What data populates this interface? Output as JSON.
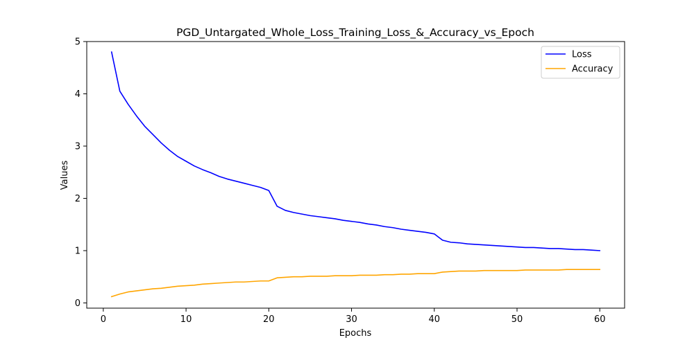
{
  "chart_data": {
    "type": "line",
    "title": "PGD_Untargated_Whole_Loss_Training_Loss_&_Accuracy_vs_Epoch",
    "xlabel": "Epochs",
    "ylabel": "Values",
    "xlim": [
      -2,
      63
    ],
    "ylim": [
      -0.1,
      5.0
    ],
    "xticks": [
      0,
      10,
      20,
      30,
      40,
      50,
      60
    ],
    "yticks": [
      0,
      1,
      2,
      3,
      4,
      5
    ],
    "grid": false,
    "legend_position": "upper right",
    "x": [
      1,
      2,
      3,
      4,
      5,
      6,
      7,
      8,
      9,
      10,
      11,
      12,
      13,
      14,
      15,
      16,
      17,
      18,
      19,
      20,
      21,
      22,
      23,
      24,
      25,
      26,
      27,
      28,
      29,
      30,
      31,
      32,
      33,
      34,
      35,
      36,
      37,
      38,
      39,
      40,
      41,
      42,
      43,
      44,
      45,
      46,
      47,
      48,
      49,
      50,
      51,
      52,
      53,
      54,
      55,
      56,
      57,
      58,
      59,
      60
    ],
    "series": [
      {
        "name": "Loss",
        "color": "#0000ff",
        "values": [
          4.8,
          4.05,
          3.8,
          3.58,
          3.38,
          3.22,
          3.06,
          2.92,
          2.8,
          2.71,
          2.62,
          2.55,
          2.49,
          2.42,
          2.37,
          2.33,
          2.29,
          2.25,
          2.21,
          2.15,
          1.85,
          1.77,
          1.73,
          1.7,
          1.67,
          1.65,
          1.63,
          1.61,
          1.58,
          1.56,
          1.54,
          1.51,
          1.49,
          1.46,
          1.44,
          1.41,
          1.39,
          1.37,
          1.35,
          1.32,
          1.2,
          1.16,
          1.15,
          1.13,
          1.12,
          1.11,
          1.1,
          1.09,
          1.08,
          1.07,
          1.06,
          1.06,
          1.05,
          1.04,
          1.04,
          1.03,
          1.02,
          1.02,
          1.01,
          1.0
        ]
      },
      {
        "name": "Accuracy",
        "color": "#ffa500",
        "values": [
          0.12,
          0.17,
          0.21,
          0.23,
          0.25,
          0.27,
          0.28,
          0.3,
          0.32,
          0.33,
          0.34,
          0.36,
          0.37,
          0.38,
          0.39,
          0.4,
          0.4,
          0.41,
          0.42,
          0.42,
          0.48,
          0.49,
          0.5,
          0.5,
          0.51,
          0.51,
          0.51,
          0.52,
          0.52,
          0.52,
          0.53,
          0.53,
          0.53,
          0.54,
          0.54,
          0.55,
          0.55,
          0.56,
          0.56,
          0.56,
          0.59,
          0.6,
          0.61,
          0.61,
          0.61,
          0.62,
          0.62,
          0.62,
          0.62,
          0.62,
          0.63,
          0.63,
          0.63,
          0.63,
          0.63,
          0.64,
          0.64,
          0.64,
          0.64,
          0.64
        ]
      }
    ]
  }
}
